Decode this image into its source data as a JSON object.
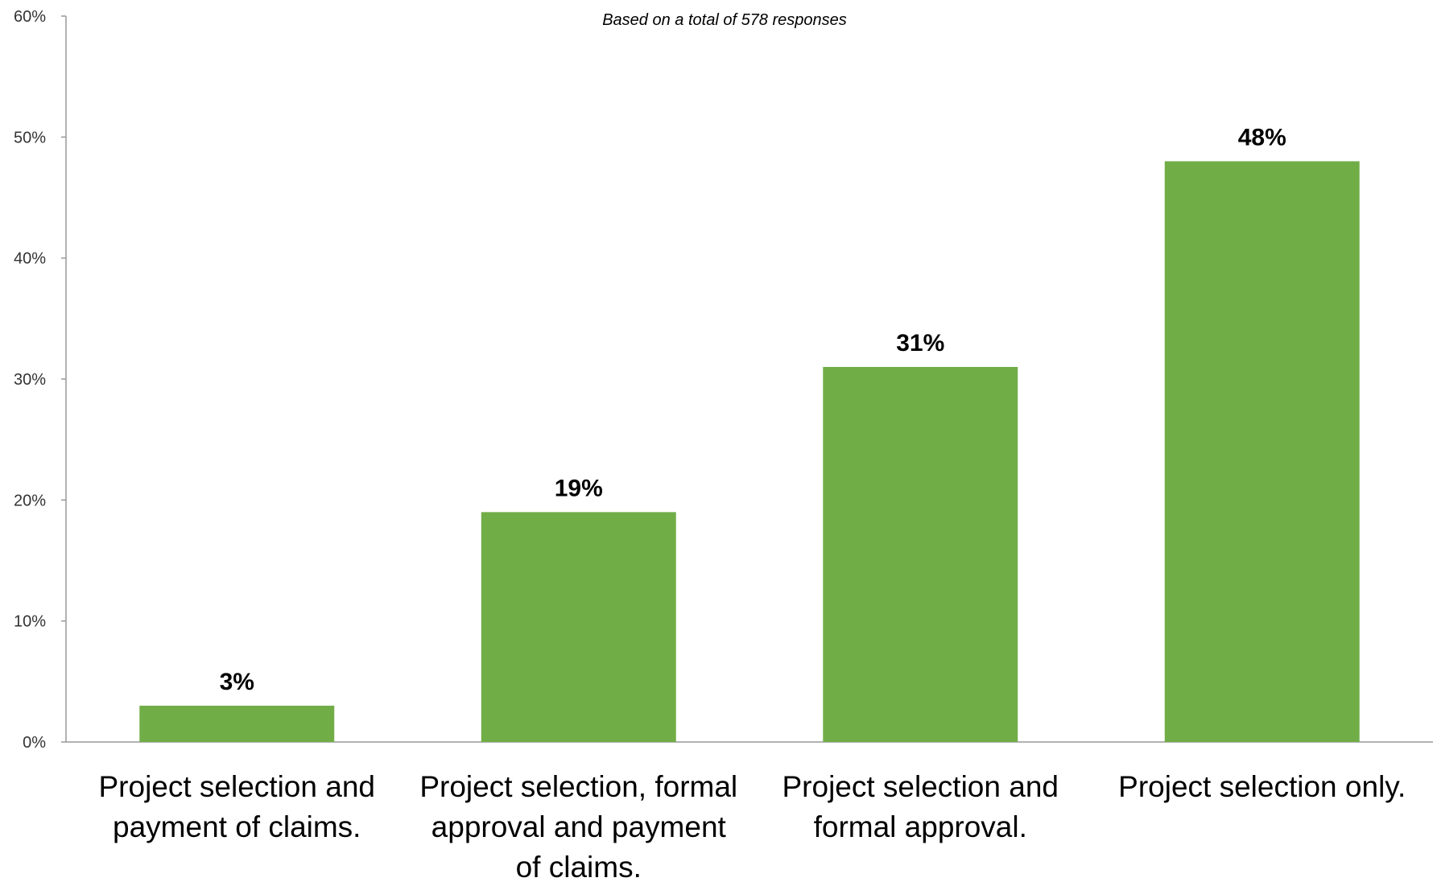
{
  "chart_data": {
    "type": "bar",
    "title": "",
    "subtitle": "Based on a total of 578 responses",
    "categories": [
      "Project selection and payment of claims.",
      "Project selection, formal approval and payment of claims.",
      "Project selection and formal approval.",
      "Project selection only."
    ],
    "values": [
      3,
      19,
      31,
      48
    ],
    "value_labels": [
      "3%",
      "19%",
      "31%",
      "48%"
    ],
    "yticks": [
      "0%",
      "10%",
      "20%",
      "30%",
      "40%",
      "50%",
      "60%"
    ],
    "xlabel": "",
    "ylabel": "",
    "ylim": [
      0,
      60
    ],
    "grid": false,
    "legend": "none",
    "colors": {
      "bar": "#70AD47",
      "axis": "#999999"
    }
  }
}
